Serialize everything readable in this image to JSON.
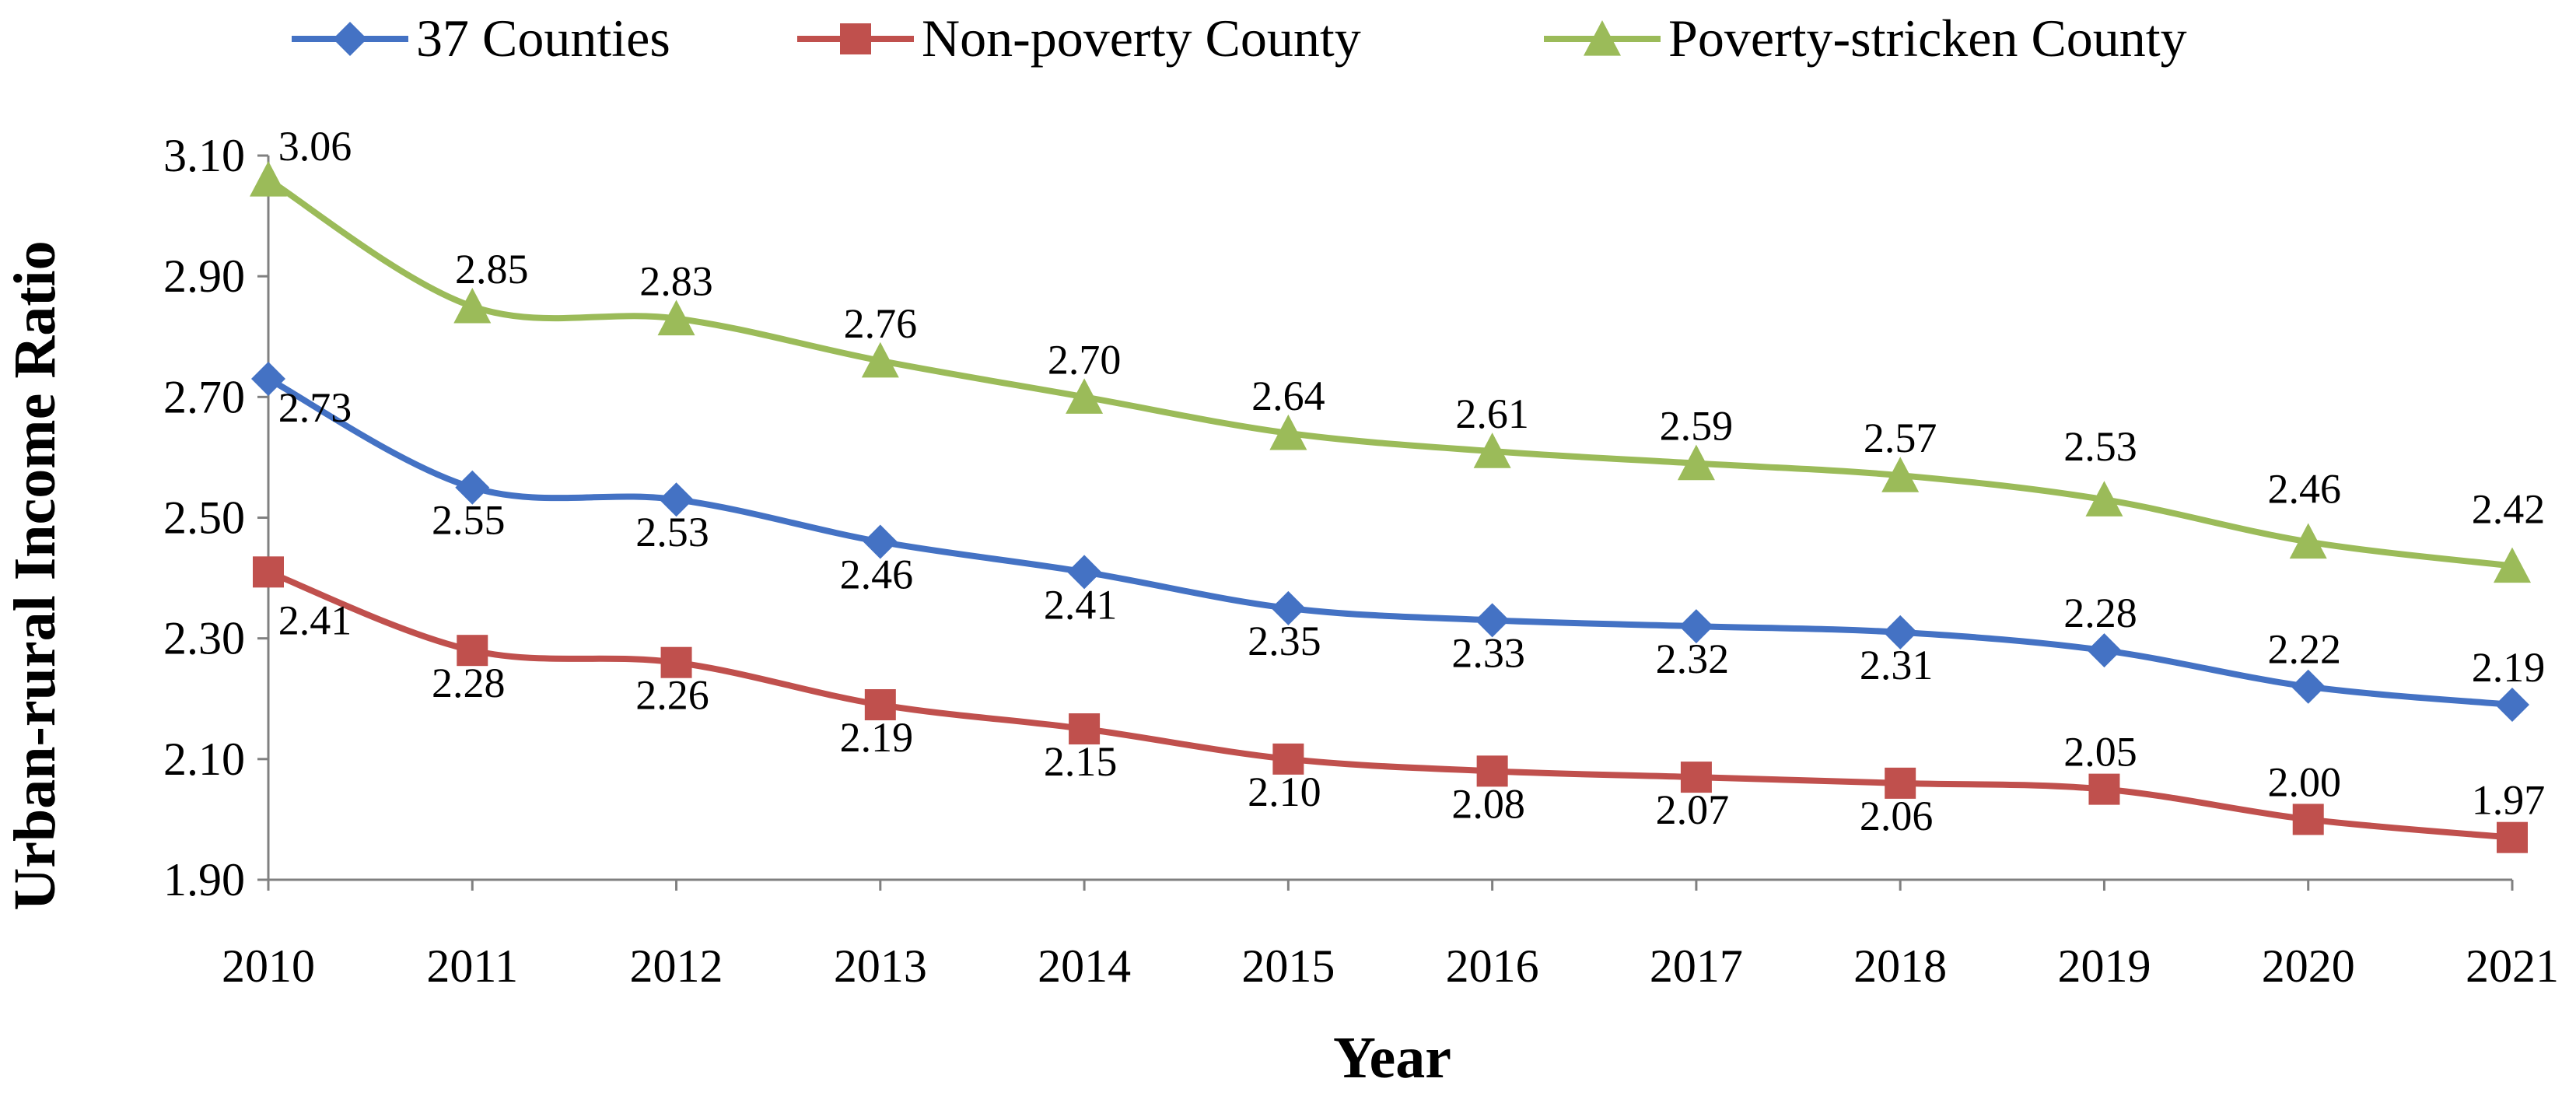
{
  "chart_data": {
    "type": "line",
    "title": "",
    "xlabel": "Year",
    "ylabel": "Urban-rural Income Ratio",
    "categories": [
      "2010",
      "2011",
      "2012",
      "2013",
      "2014",
      "2015",
      "2016",
      "2017",
      "2018",
      "2019",
      "2020",
      "2021"
    ],
    "ylim": [
      1.9,
      3.1
    ],
    "yticks": [
      "1.90",
      "2.10",
      "2.30",
      "2.50",
      "2.70",
      "2.90",
      "3.10"
    ],
    "grid": false,
    "legend_position": "top",
    "series": [
      {
        "name": "37 Counties",
        "color": "#4472C4",
        "marker": "diamond",
        "values": [
          2.73,
          2.55,
          2.53,
          2.46,
          2.41,
          2.35,
          2.33,
          2.32,
          2.31,
          2.28,
          2.22,
          2.19
        ],
        "labels": [
          "2.73",
          "2.55",
          "2.53",
          "2.46",
          "2.41",
          "2.35",
          "2.33",
          "2.32",
          "2.31",
          "2.28",
          "2.22",
          "2.19"
        ]
      },
      {
        "name": "Non-poverty County",
        "color": "#C0504D",
        "marker": "square",
        "values": [
          2.41,
          2.28,
          2.26,
          2.19,
          2.15,
          2.1,
          2.08,
          2.07,
          2.06,
          2.05,
          2.0,
          1.97
        ],
        "labels": [
          "2.41",
          "2.28",
          "2.26",
          "2.19",
          "2.15",
          "2.10",
          "2.08",
          "2.07",
          "2.06",
          "2.05",
          "2.00",
          "1.97"
        ]
      },
      {
        "name": "Poverty-stricken County",
        "color": "#9BBB59",
        "marker": "triangle",
        "values": [
          3.06,
          2.85,
          2.83,
          2.76,
          2.7,
          2.64,
          2.61,
          2.59,
          2.57,
          2.53,
          2.46,
          2.42
        ],
        "labels": [
          "3.06",
          "2.85",
          "2.83",
          "2.76",
          "2.70",
          "2.64",
          "2.61",
          "2.59",
          "2.57",
          "2.53",
          "2.46",
          "2.42"
        ]
      }
    ]
  }
}
